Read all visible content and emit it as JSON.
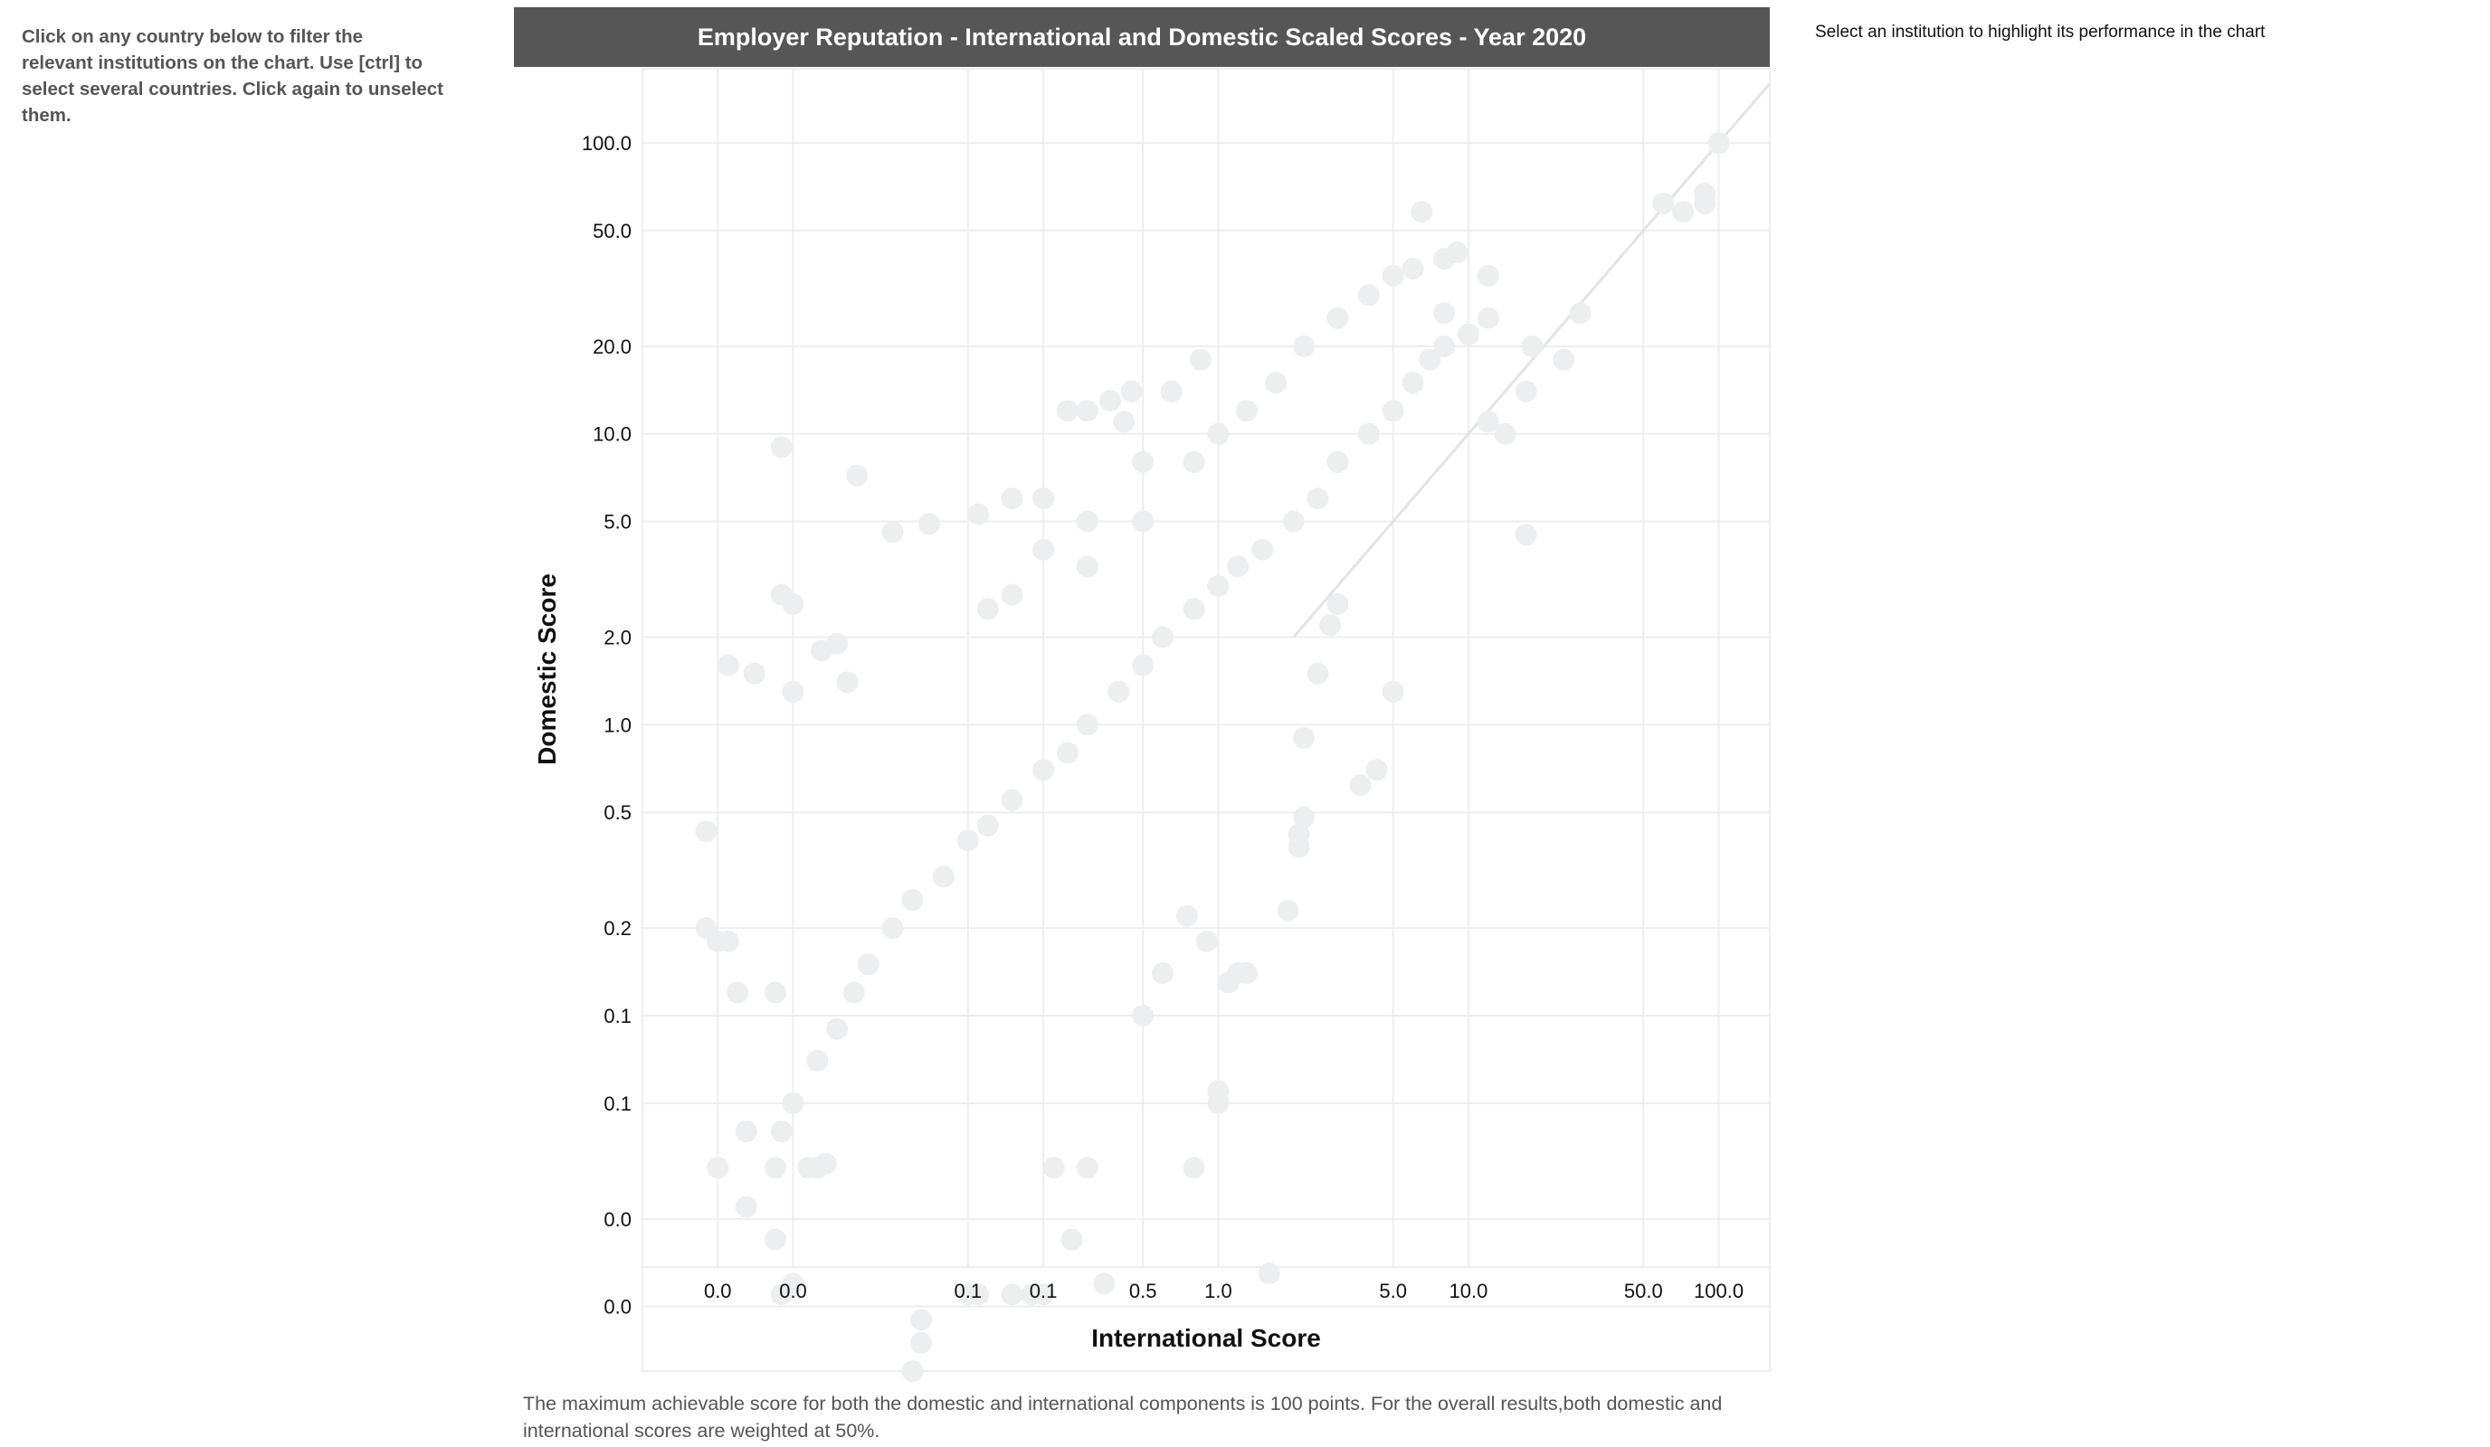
{
  "instructions": {
    "country_filter": "Click on any country below to filter the\nrelevant institutions on the chart. Use [ctrl] to\nselect several countries. Click again to unselect\nthem.",
    "institution_select": "Select an institution to highlight its performance in the chart"
  },
  "footnote": "The maximum achievable score for both the domestic and international components is 100 points. For the overall results,both domestic and international scores are weighted at 50%.",
  "colors": {
    "title_bar": "#565656",
    "title_text": "#ffffff",
    "point": "#eceeef",
    "grid": "#eeeeee",
    "axis_text": "#111111"
  },
  "chart_data": {
    "type": "scatter",
    "title": "Employer Reputation - International and Domestic Scaled Scores - Year 2020",
    "xlabel": "International Score",
    "ylabel": "Domestic Score",
    "x_scale": "log",
    "y_scale": "log",
    "grid": true,
    "reference_line": "y = x",
    "x_ticks": [
      {
        "value": 0.01,
        "label": "0.0"
      },
      {
        "value": 0.02,
        "label": "0.0"
      },
      {
        "value": 0.1,
        "label": "0.1"
      },
      {
        "value": 0.2,
        "label": "0.1"
      },
      {
        "value": 0.5,
        "label": "0.5"
      },
      {
        "value": 1,
        "label": "1.0"
      },
      {
        "value": 5,
        "label": "5.0"
      },
      {
        "value": 10,
        "label": "10.0"
      },
      {
        "value": 50,
        "label": "50.0"
      },
      {
        "value": 100,
        "label": "100.0"
      }
    ],
    "y_ticks": [
      {
        "value": 100,
        "label": "100.0"
      },
      {
        "value": 50,
        "label": "50.0"
      },
      {
        "value": 20,
        "label": "20.0"
      },
      {
        "value": 10,
        "label": "10.0"
      },
      {
        "value": 5,
        "label": "5.0"
      },
      {
        "value": 2,
        "label": "2.0"
      },
      {
        "value": 1,
        "label": "1.0"
      },
      {
        "value": 0.5,
        "label": "0.5"
      },
      {
        "value": 0.2,
        "label": "0.2"
      },
      {
        "value": 0.1,
        "label": "0.1"
      },
      {
        "value": 0.05,
        "label": "0.1"
      },
      {
        "value": 0.02,
        "label": "0.0"
      },
      {
        "value": 0.01,
        "label": "0.0"
      }
    ],
    "xlim": [
      0.005,
      160
    ],
    "ylim": [
      0.006,
      180
    ],
    "series": [
      {
        "points": [
          [
            100,
            100
          ],
          [
            88,
            62
          ],
          [
            88,
            67
          ],
          [
            72,
            58
          ],
          [
            60,
            62
          ],
          [
            24,
            18
          ],
          [
            28,
            26
          ],
          [
            18,
            20
          ],
          [
            17,
            14
          ],
          [
            14,
            10
          ],
          [
            12,
            11
          ],
          [
            8,
            20
          ],
          [
            6.5,
            58
          ],
          [
            17,
            4.5
          ],
          [
            5,
            1.3
          ],
          [
            4.3,
            0.7
          ],
          [
            3.7,
            0.62
          ],
          [
            3,
            2.6
          ],
          [
            2.8,
            2.2
          ],
          [
            2.5,
            1.5
          ],
          [
            2.2,
            0.9
          ],
          [
            2.2,
            0.48
          ],
          [
            2.1,
            0.38
          ],
          [
            1.9,
            0.23
          ],
          [
            2.1,
            0.42
          ],
          [
            1.6,
            0.013
          ],
          [
            1.2,
            0.14
          ],
          [
            1.1,
            0.13
          ],
          [
            1.3,
            0.14
          ],
          [
            1.0,
            0.055
          ],
          [
            1.0,
            0.05
          ],
          [
            0.8,
            0.03
          ],
          [
            0.9,
            0.18
          ],
          [
            0.75,
            0.22
          ],
          [
            0.6,
            0.14
          ],
          [
            0.5,
            0.1
          ],
          [
            0.35,
            0.012
          ],
          [
            0.18,
            0.011
          ],
          [
            0.15,
            0.011
          ],
          [
            0.11,
            0.011
          ],
          [
            0.1,
            0.011
          ],
          [
            0.2,
            0.011
          ],
          [
            0.26,
            0.017
          ],
          [
            0.3,
            0.03
          ],
          [
            0.22,
            0.03
          ],
          [
            0.06,
            0.006
          ],
          [
            0.065,
            0.0075
          ],
          [
            0.065,
            0.009
          ],
          [
            0.018,
            0.011
          ],
          [
            0.02,
            0.012
          ],
          [
            0.017,
            0.017
          ],
          [
            0.01,
            0.03
          ],
          [
            0.013,
            0.04
          ],
          [
            0.018,
            0.04
          ],
          [
            0.025,
            0.03
          ],
          [
            0.023,
            0.03
          ],
          [
            0.027,
            0.031
          ],
          [
            0.017,
            0.03
          ],
          [
            0.013,
            0.022
          ],
          [
            0.009,
            0.43
          ],
          [
            0.018,
            9
          ],
          [
            0.036,
            7.2
          ],
          [
            0.018,
            2.8
          ],
          [
            0.02,
            2.6
          ],
          [
            0.02,
            1.3
          ],
          [
            0.011,
            1.6
          ],
          [
            0.014,
            1.5
          ],
          [
            0.026,
            1.8
          ],
          [
            0.03,
            1.9
          ],
          [
            0.033,
            1.4
          ],
          [
            0.01,
            0.18
          ],
          [
            0.011,
            0.18
          ],
          [
            0.012,
            0.12
          ],
          [
            0.017,
            0.12
          ],
          [
            0.009,
            0.2
          ],
          [
            0.05,
            4.6
          ],
          [
            0.07,
            4.9
          ],
          [
            0.11,
            5.3
          ],
          [
            0.15,
            6
          ],
          [
            0.2,
            6
          ],
          [
            0.25,
            12
          ],
          [
            0.3,
            12
          ],
          [
            0.37,
            13
          ],
          [
            0.42,
            11
          ],
          [
            0.45,
            14
          ],
          [
            0.65,
            14
          ],
          [
            0.85,
            18
          ],
          [
            0.12,
            2.5
          ],
          [
            0.15,
            2.8
          ],
          [
            0.2,
            4
          ],
          [
            0.3,
            3.5
          ],
          [
            0.3,
            5
          ],
          [
            0.5,
            5
          ],
          [
            0.5,
            8
          ],
          [
            0.8,
            8
          ],
          [
            1.0,
            10
          ],
          [
            1.3,
            12
          ],
          [
            1.7,
            15
          ],
          [
            2.2,
            20
          ],
          [
            3,
            25
          ],
          [
            4,
            30
          ],
          [
            5,
            35
          ],
          [
            6,
            37
          ],
          [
            8,
            40
          ],
          [
            9,
            42
          ],
          [
            12,
            35
          ],
          [
            12,
            25
          ],
          [
            10,
            22
          ],
          [
            8,
            26
          ],
          [
            7,
            18
          ],
          [
            6,
            15
          ],
          [
            5,
            12
          ],
          [
            4,
            10
          ],
          [
            3,
            8
          ],
          [
            2.5,
            6
          ],
          [
            2,
            5
          ],
          [
            1.5,
            4
          ],
          [
            1.2,
            3.5
          ],
          [
            1.0,
            3
          ],
          [
            0.8,
            2.5
          ],
          [
            0.6,
            2
          ],
          [
            0.5,
            1.6
          ],
          [
            0.4,
            1.3
          ],
          [
            0.3,
            1.0
          ],
          [
            0.25,
            0.8
          ],
          [
            0.2,
            0.7
          ],
          [
            0.15,
            0.55
          ],
          [
            0.12,
            0.45
          ],
          [
            0.1,
            0.4
          ],
          [
            0.08,
            0.3
          ],
          [
            0.06,
            0.25
          ],
          [
            0.05,
            0.2
          ],
          [
            0.04,
            0.15
          ],
          [
            0.035,
            0.12
          ],
          [
            0.03,
            0.09
          ],
          [
            0.025,
            0.07
          ],
          [
            0.02,
            0.05
          ]
        ]
      }
    ]
  }
}
